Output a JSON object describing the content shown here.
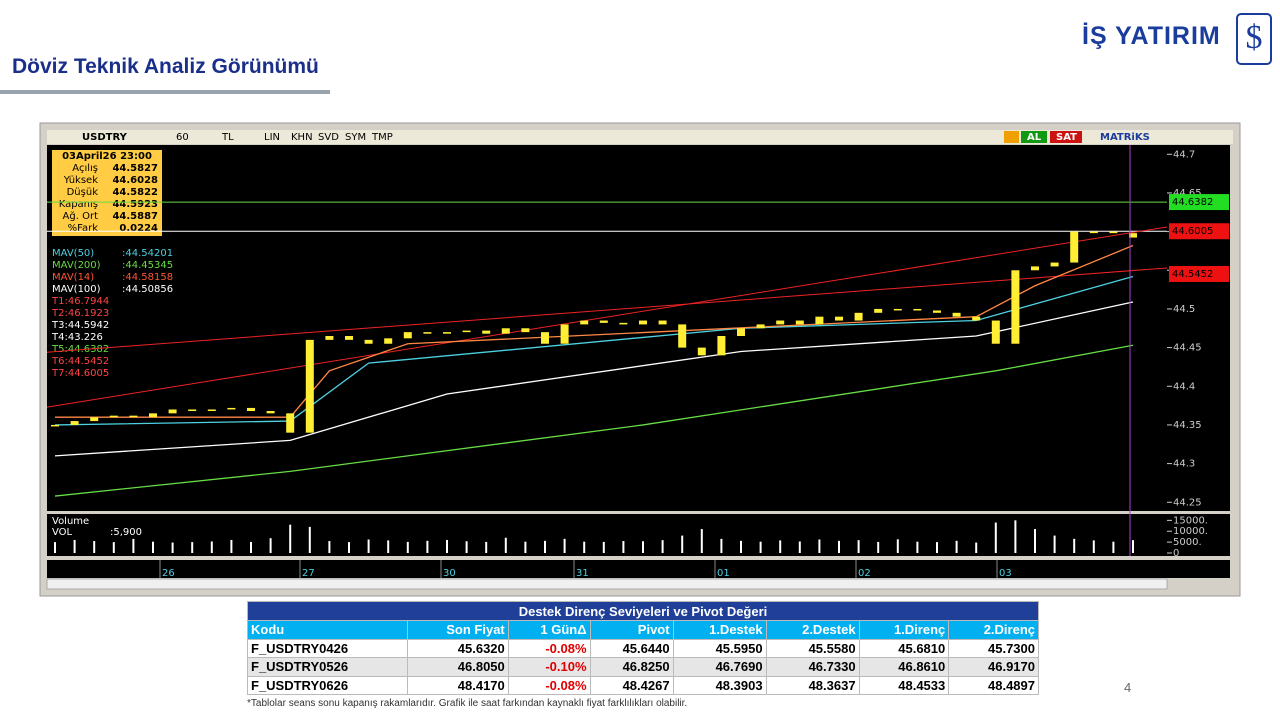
{
  "header": {
    "title": "Döviz Teknik Analiz Görünümü",
    "logo": "İŞ YATIRIM"
  },
  "screenshot": {
    "toolbar": {
      "symbol": "USDTRY",
      "period": "60",
      "currency": "TL",
      "buttons": [
        "LIN",
        "KHN",
        "SVD",
        "SYM",
        "TMP"
      ],
      "buy": "AL",
      "sell": "SAT",
      "brand": "MATRiKS"
    },
    "info": {
      "date": "03April26 23:00",
      "rows": [
        [
          "Açılış",
          "44.5827"
        ],
        [
          "Yüksek",
          "44.6028"
        ],
        [
          "Düşük",
          "44.5822"
        ],
        [
          "Kapanış",
          "44.5923"
        ],
        [
          "Ağ. Ort",
          "44.5887"
        ],
        [
          "%Fark",
          "0.0224"
        ]
      ]
    },
    "indicators": [
      {
        "label": "MAV(50)",
        "value": ":44.54201",
        "color": "#4dd0e1"
      },
      {
        "label": "MAV(200)",
        "value": ":44.45345",
        "color": "#66dd44"
      },
      {
        "label": "MAV(14)",
        "value": ":44.58158",
        "color": "#ff5533"
      },
      {
        "label": "MAV(100)",
        "value": ":44.50856",
        "color": "#ffffff"
      }
    ],
    "levels": [
      {
        "label": "T1:46.7944",
        "color": "#ff4444"
      },
      {
        "label": "T2:46.1923",
        "color": "#ff4444"
      },
      {
        "label": "T3:44.5942",
        "color": "#ffffff"
      },
      {
        "label": "T4:43.226",
        "color": "#ffffff"
      },
      {
        "label": "T5:44.6382",
        "color": "#66dd44"
      },
      {
        "label": "T6:44.5452",
        "color": "#ff4444"
      },
      {
        "label": "T7:44.6005",
        "color": "#ff4444"
      }
    ],
    "chart": {
      "ylim": [
        44.24,
        44.712
      ],
      "yticks": [
        44.7,
        44.65,
        44.6,
        44.55,
        44.5,
        44.45,
        44.4,
        44.35,
        44.3,
        44.25
      ],
      "candle_color": "#ffee33",
      "closes": [
        44.35,
        44.355,
        44.36,
        44.362,
        44.36,
        44.365,
        44.37,
        44.368,
        44.37,
        44.372,
        44.368,
        44.365,
        44.34,
        44.46,
        44.465,
        44.46,
        44.455,
        44.462,
        44.47,
        44.468,
        44.47,
        44.472,
        44.468,
        44.475,
        44.47,
        44.455,
        44.48,
        44.485,
        44.482,
        44.48,
        44.485,
        44.48,
        44.45,
        44.44,
        44.465,
        44.475,
        44.48,
        44.485,
        44.48,
        44.49,
        44.485,
        44.495,
        44.5,
        44.5,
        44.498,
        44.495,
        44.49,
        44.485,
        44.455,
        44.55,
        44.555,
        44.56,
        44.6,
        44.6,
        44.598,
        44.5923
      ],
      "averages": [
        {
          "color": "#66dd44",
          "x": [
            0,
            12,
            30,
            48,
            55
          ],
          "values": [
            44.258,
            44.29,
            44.35,
            44.42,
            44.453
          ]
        },
        {
          "color": "#ffffff",
          "x": [
            0,
            12,
            20,
            35,
            47,
            55
          ],
          "values": [
            44.31,
            44.33,
            44.39,
            44.445,
            44.465,
            44.509
          ]
        },
        {
          "color": "#4dd0e1",
          "x": [
            0,
            12,
            16,
            35,
            47,
            55
          ],
          "values": [
            44.35,
            44.355,
            44.43,
            44.475,
            44.485,
            44.542
          ]
        },
        {
          "color": "#ff8844",
          "x": [
            0,
            12,
            14,
            18,
            47,
            50,
            55
          ],
          "values": [
            44.36,
            44.36,
            44.42,
            44.455,
            44.49,
            44.53,
            44.582
          ]
        }
      ],
      "trend_lines": [
        {
          "color": "#ee2222",
          "values": [
            44.373,
            44.606
          ]
        },
        {
          "color": "#ee2222",
          "values": [
            44.444,
            44.553
          ]
        }
      ],
      "level_lines": [
        {
          "color": "#66dd44",
          "value": 44.6382
        },
        {
          "color": "#ffffff",
          "value": 44.6005
        }
      ],
      "price_tags": [
        {
          "value": 44.6382,
          "color": "#22dd22"
        },
        {
          "value": 44.6005,
          "color": "#ee1111"
        },
        {
          "value": 44.5452,
          "color": "#ee1111"
        }
      ],
      "volume_title": "Volume",
      "volume_label": "VOL",
      "volume_value": ":5,900",
      "vlim": [
        0,
        17000
      ],
      "vticks": [
        {
          "value": 15000,
          "label": "15000."
        },
        {
          "value": 10000,
          "label": "10000."
        },
        {
          "value": 5000,
          "label": "5000."
        },
        0
      ],
      "volumes": [
        5000,
        6000,
        5500,
        5000,
        6500,
        5200,
        4800,
        5000,
        5300,
        6000,
        5100,
        6800,
        13000,
        12000,
        5500,
        5000,
        6200,
        5800,
        5100,
        5600,
        6000,
        5400,
        5100,
        7000,
        5200,
        5600,
        6500,
        5200,
        5100,
        5500,
        5400,
        5900,
        8000,
        11000,
        6500,
        5600,
        5200,
        5800,
        5300,
        6200,
        5600,
        5900,
        5100,
        6300,
        5200,
        5000,
        5600,
        4800,
        14000,
        15000,
        11000,
        8000,
        6500,
        5800,
        5200,
        5900
      ],
      "dates": [
        "26",
        "27",
        "30",
        "31",
        "01",
        "02",
        "03"
      ]
    }
  },
  "table": {
    "title": "Destek Direnç Seviyeleri ve Pivot Değeri",
    "columns": [
      "Kodu",
      "Son Fiyat",
      "1 GünΔ",
      "Pivot",
      "1.Destek",
      "2.Destek",
      "1.Direnç",
      "2.Direnç"
    ],
    "rows": [
      [
        "F_USDTRY0426",
        "45.6320",
        "-0.08%",
        "45.6440",
        "45.5950",
        "45.5580",
        "45.6810",
        "45.7300"
      ],
      [
        "F_USDTRY0526",
        "46.8050",
        "-0.10%",
        "46.8250",
        "46.7690",
        "46.7330",
        "46.8610",
        "46.9170"
      ],
      [
        "F_USDTRY0626",
        "48.4170",
        "-0.08%",
        "48.4267",
        "48.3903",
        "48.3637",
        "48.4533",
        "48.4897"
      ]
    ]
  },
  "footnote": "*Tablolar seans sonu kapanış rakamlarıdır. Grafik ile saat farkından kaynaklı fiyat farklılıkları olabilir.",
  "page_number": "4"
}
